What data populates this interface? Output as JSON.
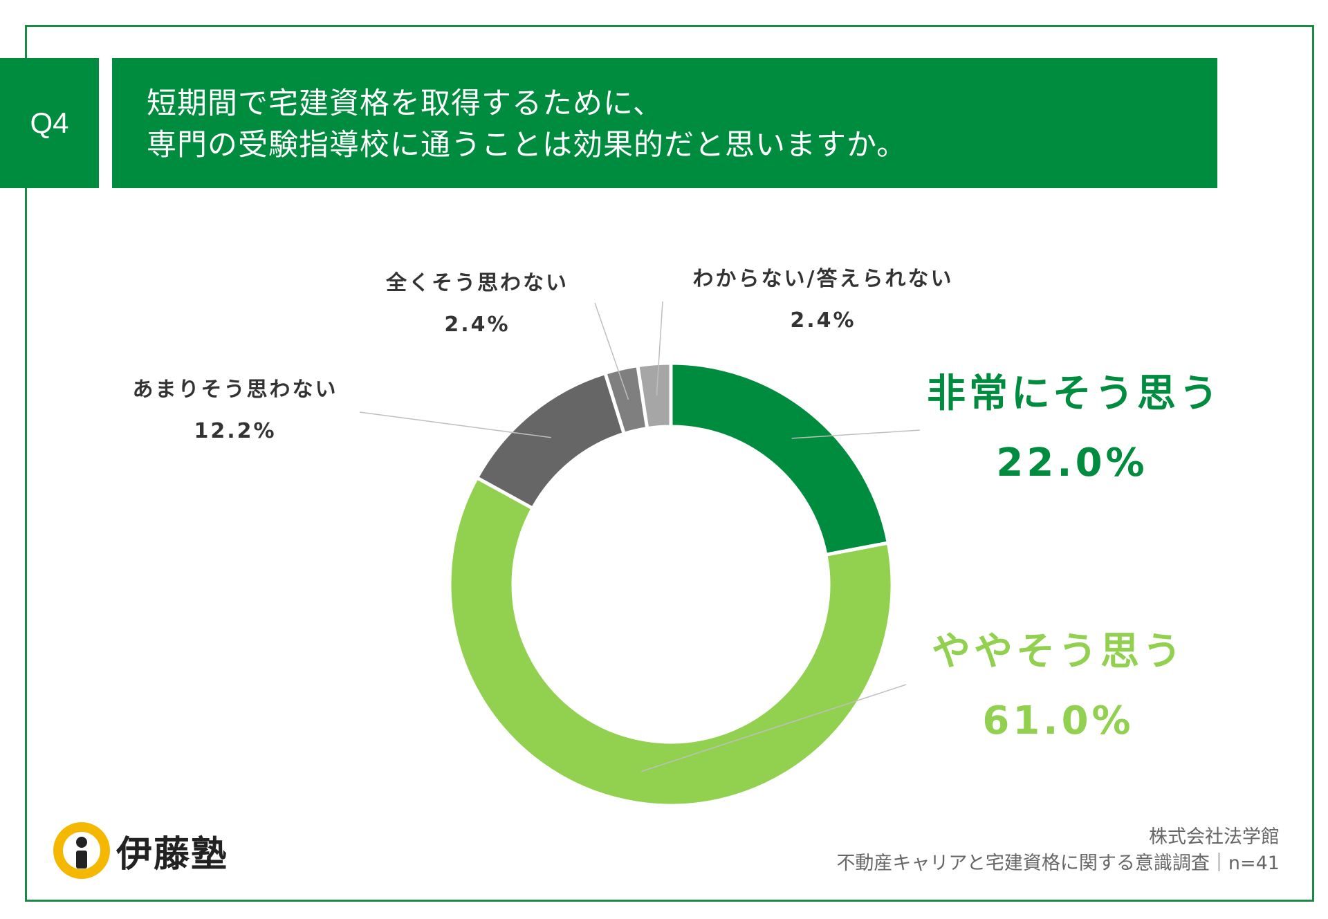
{
  "question": {
    "number": "Q4",
    "line1": "短期間で宅建資格を取得するために、",
    "line2": "専門の受験指導校に通うことは効果的だと思いますか。"
  },
  "colors": {
    "brand_green": "#008c3f",
    "light_green": "#92d050",
    "dark_gray": "#666666",
    "mid_gray": "#7f7f7f",
    "light_gray": "#a6a6a6"
  },
  "chart_data": {
    "type": "pie",
    "donut": true,
    "slices": [
      {
        "label": "非常にそう思う",
        "value": 22.0,
        "display": "22.0%",
        "color": "#008c3f"
      },
      {
        "label": "ややそう思う",
        "value": 61.0,
        "display": "61.0%",
        "color": "#92d050"
      },
      {
        "label": "あまりそう思わない",
        "value": 12.2,
        "display": "12.2%",
        "color": "#666666"
      },
      {
        "label": "全くそう思わない",
        "value": 2.4,
        "display": "2.4%",
        "color": "#7f7f7f"
      },
      {
        "label": "わからない/答えられない",
        "value": 2.4,
        "display": "2.4%",
        "color": "#a6a6a6"
      }
    ]
  },
  "logo": {
    "text": "伊藤塾"
  },
  "footer": {
    "line1": "株式会社法学館",
    "line2": "不動産キャリアと宅建資格に関する意識調査｜n=41"
  }
}
